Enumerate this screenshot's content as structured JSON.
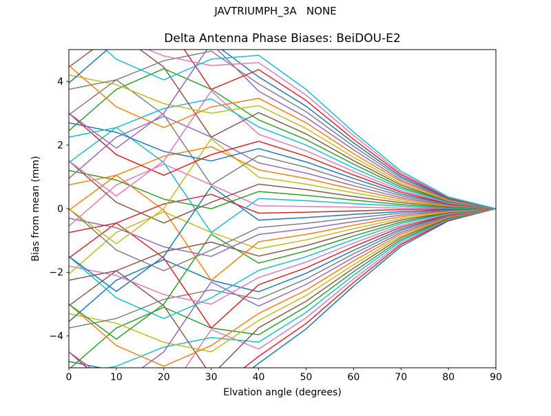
{
  "figure": {
    "suptitle": "JAVTRIUMPH_3A   NONE",
    "axes_title": "Delta Antenna Phase Biases: BeiDOU-E2",
    "xlabel": "Elvation angle (degrees)",
    "ylabel": "Bias from mean (mm)",
    "background_color": "#ffffff",
    "axis_color": "#000000"
  },
  "chart_data": {
    "type": "line",
    "suptitle": "JAVTRIUMPH_3A   NONE",
    "title": "Delta Antenna Phase Biases: BeiDOU-E2",
    "xlabel": "Elvation angle (degrees)",
    "ylabel": "Bias from mean (mm)",
    "xlim": [
      0,
      90
    ],
    "ylim": [
      -5,
      5
    ],
    "xticks": [
      0,
      10,
      20,
      30,
      40,
      50,
      60,
      70,
      80,
      90
    ],
    "xticklabels": [
      "0",
      "10",
      "20",
      "30",
      "40",
      "50",
      "60",
      "70",
      "80",
      "90"
    ],
    "yticks": [
      -4,
      -2,
      0,
      2,
      4
    ],
    "yticklabels": [
      "−4",
      "−2",
      "0",
      "2",
      "4"
    ],
    "grid": false,
    "legend": "none",
    "line_width": 1.5,
    "palette": [
      "#1f77b4",
      "#ff7f0e",
      "#2ca02c",
      "#d62728",
      "#9467bd",
      "#8c564b",
      "#e377c2",
      "#7f7f7f",
      "#bcbd22",
      "#17becf"
    ],
    "x": [
      0,
      10,
      20,
      30,
      40,
      50,
      60,
      70,
      80,
      90
    ],
    "series": [
      {
        "color": "#1f77b4",
        "values": [
          -4.8,
          -5.1,
          -5.7,
          -6.0,
          -4.86,
          -3.78,
          -2.43,
          -1.19,
          -0.38,
          0
        ]
      },
      {
        "color": "#d62728",
        "values": [
          -4.5,
          -5.8,
          -6.45,
          -5.8,
          -4.64,
          -3.61,
          -2.32,
          -1.13,
          -0.36,
          0
        ]
      },
      {
        "color": "#e377c2",
        "values": [
          -6.0,
          -7.1,
          -6.0,
          -3.8,
          -4.41,
          -3.43,
          -2.21,
          -1.08,
          -0.34,
          0
        ]
      },
      {
        "color": "#17becf",
        "values": [
          -5.25,
          -4.95,
          -4.35,
          -4.05,
          -4.19,
          -3.26,
          -2.09,
          -1.02,
          -0.33,
          0
        ]
      },
      {
        "color": "#2ca02c",
        "values": [
          -5.05,
          -3.75,
          -3.1,
          -3.75,
          -3.96,
          -3.08,
          -1.98,
          -0.97,
          -0.31,
          0
        ]
      },
      {
        "color": "#8c564b",
        "values": [
          -3.05,
          -1.95,
          -3.05,
          -5.25,
          -3.74,
          -2.91,
          -1.87,
          -0.91,
          -0.29,
          0
        ]
      },
      {
        "color": "#bcbd22",
        "values": [
          -3.3,
          -3.6,
          -4.2,
          -4.5,
          -3.51,
          -2.73,
          -1.76,
          -0.86,
          -0.27,
          0
        ]
      },
      {
        "color": "#ff7f0e",
        "values": [
          -3.0,
          -4.3,
          -4.95,
          -4.3,
          -3.29,
          -2.56,
          -1.64,
          -0.8,
          -0.26,
          0
        ]
      },
      {
        "color": "#9467bd",
        "values": [
          -4.5,
          -5.6,
          -4.5,
          -2.3,
          -3.06,
          -2.38,
          -1.53,
          -0.75,
          -0.24,
          0
        ]
      },
      {
        "color": "#7f7f7f",
        "values": [
          -3.75,
          -3.45,
          -2.85,
          -2.55,
          -2.84,
          -2.21,
          -1.42,
          -0.69,
          -0.22,
          0
        ]
      },
      {
        "color": "#1f77b4",
        "values": [
          -3.55,
          -2.25,
          -1.6,
          -2.25,
          -2.61,
          -2.03,
          -1.31,
          -0.64,
          -0.2,
          0
        ]
      },
      {
        "color": "#d62728",
        "values": [
          -1.55,
          -0.45,
          -1.55,
          -3.75,
          -2.39,
          -1.86,
          -1.19,
          -0.58,
          -0.19,
          0
        ]
      },
      {
        "color": "#e377c2",
        "values": [
          -1.8,
          -2.1,
          -2.7,
          -3.0,
          -2.16,
          -1.68,
          -1.08,
          -0.53,
          -0.17,
          0
        ]
      },
      {
        "color": "#17becf",
        "values": [
          -1.5,
          -2.8,
          -3.45,
          -2.8,
          -1.94,
          -1.51,
          -0.97,
          -0.47,
          -0.15,
          0
        ]
      },
      {
        "color": "#2ca02c",
        "values": [
          -3.0,
          -4.1,
          -3.0,
          -0.8,
          -1.71,
          -1.33,
          -0.86,
          -0.42,
          -0.13,
          0
        ]
      },
      {
        "color": "#8c564b",
        "values": [
          -2.25,
          -1.95,
          -1.35,
          -1.05,
          -1.49,
          -1.16,
          -0.74,
          -0.36,
          -0.12,
          0
        ]
      },
      {
        "color": "#bcbd22",
        "values": [
          -2.05,
          -0.75,
          -0.1,
          -0.75,
          -1.26,
          -0.98,
          -0.63,
          -0.31,
          -0.1,
          0
        ]
      },
      {
        "color": "#ff7f0e",
        "values": [
          -0.05,
          1.05,
          -0.05,
          -2.25,
          -1.04,
          -0.81,
          -0.52,
          -0.25,
          -0.08,
          0
        ]
      },
      {
        "color": "#9467bd",
        "values": [
          -0.3,
          -0.6,
          -1.2,
          -1.5,
          -0.81,
          -0.63,
          -0.41,
          -0.2,
          -0.06,
          0
        ]
      },
      {
        "color": "#7f7f7f",
        "values": [
          0.0,
          -1.3,
          -1.95,
          -1.3,
          -0.59,
          -0.46,
          -0.29,
          -0.14,
          -0.05,
          0
        ]
      },
      {
        "color": "#1f77b4",
        "values": [
          -1.5,
          -2.6,
          -1.5,
          0.7,
          -0.36,
          -0.28,
          -0.18,
          -0.09,
          -0.03,
          0
        ]
      },
      {
        "color": "#d62728",
        "values": [
          -0.75,
          -0.45,
          0.15,
          0.45,
          -0.14,
          -0.11,
          -0.07,
          -0.03,
          -0.01,
          0
        ]
      },
      {
        "color": "#e377c2",
        "values": [
          -0.55,
          0.75,
          1.4,
          0.75,
          0.09,
          0.07,
          0.05,
          0.02,
          0.01,
          0
        ]
      },
      {
        "color": "#17becf",
        "values": [
          1.45,
          2.55,
          1.45,
          -0.75,
          0.32,
          0.25,
          0.16,
          0.08,
          0.02,
          0
        ]
      },
      {
        "color": "#2ca02c",
        "values": [
          1.2,
          0.9,
          0.3,
          0.0,
          0.54,
          0.42,
          0.27,
          0.13,
          0.04,
          0
        ]
      },
      {
        "color": "#8c564b",
        "values": [
          1.5,
          0.2,
          -0.45,
          0.2,
          0.77,
          0.6,
          0.38,
          0.19,
          0.06,
          0
        ]
      },
      {
        "color": "#bcbd22",
        "values": [
          0.0,
          -1.1,
          0.0,
          2.2,
          0.99,
          0.77,
          0.5,
          0.24,
          0.08,
          0
        ]
      },
      {
        "color": "#ff7f0e",
        "values": [
          0.75,
          1.05,
          1.65,
          1.95,
          1.22,
          0.95,
          0.61,
          0.3,
          0.09,
          0
        ]
      },
      {
        "color": "#9467bd",
        "values": [
          0.95,
          2.25,
          2.9,
          2.25,
          1.44,
          1.12,
          0.72,
          0.35,
          0.11,
          0
        ]
      },
      {
        "color": "#7f7f7f",
        "values": [
          2.95,
          4.05,
          2.95,
          0.75,
          1.67,
          1.3,
          0.83,
          0.41,
          0.13,
          0
        ]
      },
      {
        "color": "#1f77b4",
        "values": [
          2.7,
          2.4,
          1.8,
          1.5,
          1.89,
          1.47,
          0.95,
          0.46,
          0.15,
          0
        ]
      },
      {
        "color": "#d62728",
        "values": [
          3.0,
          1.7,
          1.05,
          1.7,
          2.12,
          1.65,
          1.06,
          0.52,
          0.16,
          0
        ]
      },
      {
        "color": "#e377c2",
        "values": [
          1.5,
          0.4,
          1.5,
          3.7,
          2.34,
          1.82,
          1.17,
          0.57,
          0.18,
          0
        ]
      },
      {
        "color": "#17becf",
        "values": [
          2.25,
          2.55,
          3.15,
          3.45,
          2.57,
          2.0,
          1.28,
          0.63,
          0.2,
          0
        ]
      },
      {
        "color": "#2ca02c",
        "values": [
          2.45,
          3.75,
          4.4,
          3.75,
          2.79,
          2.17,
          1.4,
          0.68,
          0.22,
          0
        ]
      },
      {
        "color": "#8c564b",
        "values": [
          4.45,
          5.55,
          4.45,
          2.25,
          3.02,
          2.35,
          1.51,
          0.74,
          0.23,
          0
        ]
      },
      {
        "color": "#bcbd22",
        "values": [
          4.2,
          3.9,
          3.3,
          3.0,
          3.24,
          2.52,
          1.62,
          0.79,
          0.25,
          0
        ]
      },
      {
        "color": "#ff7f0e",
        "values": [
          4.5,
          3.2,
          2.55,
          3.2,
          3.47,
          2.7,
          1.73,
          0.85,
          0.27,
          0
        ]
      },
      {
        "color": "#9467bd",
        "values": [
          3.0,
          1.9,
          3.0,
          5.2,
          3.69,
          2.87,
          1.85,
          0.9,
          0.29,
          0
        ]
      },
      {
        "color": "#7f7f7f",
        "values": [
          3.75,
          4.05,
          4.65,
          4.95,
          3.92,
          3.05,
          1.96,
          0.96,
          0.3,
          0
        ]
      },
      {
        "color": "#1f77b4",
        "values": [
          3.95,
          5.25,
          5.9,
          5.25,
          4.14,
          3.22,
          2.07,
          1.01,
          0.32,
          0
        ]
      },
      {
        "color": "#d62728",
        "values": [
          5.95,
          7.05,
          5.95,
          3.75,
          4.37,
          3.4,
          2.18,
          1.07,
          0.34,
          0
        ]
      },
      {
        "color": "#e377c2",
        "values": [
          5.7,
          5.4,
          4.8,
          4.5,
          4.59,
          3.57,
          2.3,
          1.12,
          0.36,
          0
        ]
      },
      {
        "color": "#17becf",
        "values": [
          6.0,
          4.7,
          4.05,
          4.7,
          4.82,
          3.75,
          2.41,
          1.18,
          0.37,
          0
        ]
      }
    ]
  }
}
